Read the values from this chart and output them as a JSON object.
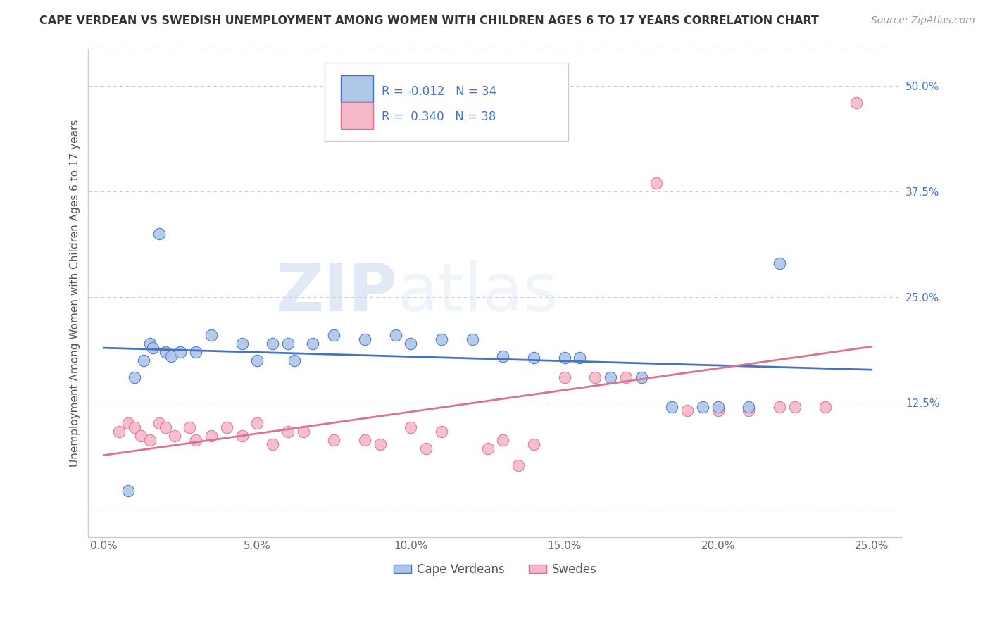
{
  "title": "CAPE VERDEAN VS SWEDISH UNEMPLOYMENT AMONG WOMEN WITH CHILDREN AGES 6 TO 17 YEARS CORRELATION CHART",
  "source": "Source: ZipAtlas.com",
  "ylabel": "Unemployment Among Women with Children Ages 6 to 17 years",
  "xlabel_ticks": [
    0.0,
    5.0,
    10.0,
    15.0,
    20.0,
    25.0
  ],
  "xlabel_labels": [
    "0.0%",
    "5.0%",
    "10.0%",
    "15.0%",
    "20.0%",
    "25.0%"
  ],
  "yright_ticks": [
    0.0,
    0.125,
    0.25,
    0.375,
    0.5
  ],
  "yright_labels": [
    "",
    "12.5%",
    "25.0%",
    "37.5%",
    "50.0%"
  ],
  "xlim": [
    -0.5,
    26.0
  ],
  "ylim": [
    -0.035,
    0.545
  ],
  "blue_R": -0.012,
  "blue_N": 34,
  "pink_R": 0.34,
  "pink_N": 38,
  "blue_color": "#aec6e8",
  "pink_color": "#f5b8c8",
  "blue_line_color": "#4472c4",
  "pink_line_color": "#e07090",
  "legend_label_1": "Cape Verdeans",
  "legend_label_2": "Swedes",
  "watermark_zip": "ZIP",
  "watermark_atlas": "atlas",
  "bg_color": "#ffffff",
  "grid_color": "#cccccc",
  "blue_x": [
    1.0,
    1.3,
    1.5,
    1.6,
    2.0,
    2.2,
    2.5,
    3.0,
    3.5,
    4.5,
    5.0,
    5.5,
    6.0,
    6.2,
    6.8,
    7.5,
    8.5,
    9.5,
    10.0,
    11.0,
    12.0,
    13.0,
    14.0,
    15.0,
    15.5,
    16.5,
    17.5,
    18.5,
    19.5,
    20.0,
    21.0,
    0.8,
    1.8,
    22.0
  ],
  "blue_y": [
    0.155,
    0.175,
    0.195,
    0.19,
    0.185,
    0.18,
    0.185,
    0.185,
    0.205,
    0.195,
    0.175,
    0.195,
    0.195,
    0.175,
    0.195,
    0.205,
    0.2,
    0.205,
    0.195,
    0.2,
    0.2,
    0.18,
    0.178,
    0.178,
    0.178,
    0.155,
    0.155,
    0.12,
    0.12,
    0.12,
    0.12,
    0.02,
    0.325,
    0.29
  ],
  "pink_x": [
    0.5,
    0.8,
    1.0,
    1.2,
    1.5,
    1.8,
    2.0,
    2.3,
    2.8,
    3.0,
    3.5,
    4.0,
    4.5,
    5.0,
    5.5,
    6.0,
    6.5,
    7.5,
    8.5,
    9.0,
    10.0,
    10.5,
    11.0,
    12.5,
    13.0,
    13.5,
    14.0,
    15.0,
    16.0,
    17.0,
    18.0,
    19.0,
    20.0,
    21.0,
    22.0,
    22.5,
    23.5,
    24.5
  ],
  "pink_y": [
    0.09,
    0.1,
    0.095,
    0.085,
    0.08,
    0.1,
    0.095,
    0.085,
    0.095,
    0.08,
    0.085,
    0.095,
    0.085,
    0.1,
    0.075,
    0.09,
    0.09,
    0.08,
    0.08,
    0.075,
    0.095,
    0.07,
    0.09,
    0.07,
    0.08,
    0.05,
    0.075,
    0.155,
    0.155,
    0.155,
    0.385,
    0.115,
    0.115,
    0.115,
    0.12,
    0.12,
    0.12,
    0.48
  ]
}
